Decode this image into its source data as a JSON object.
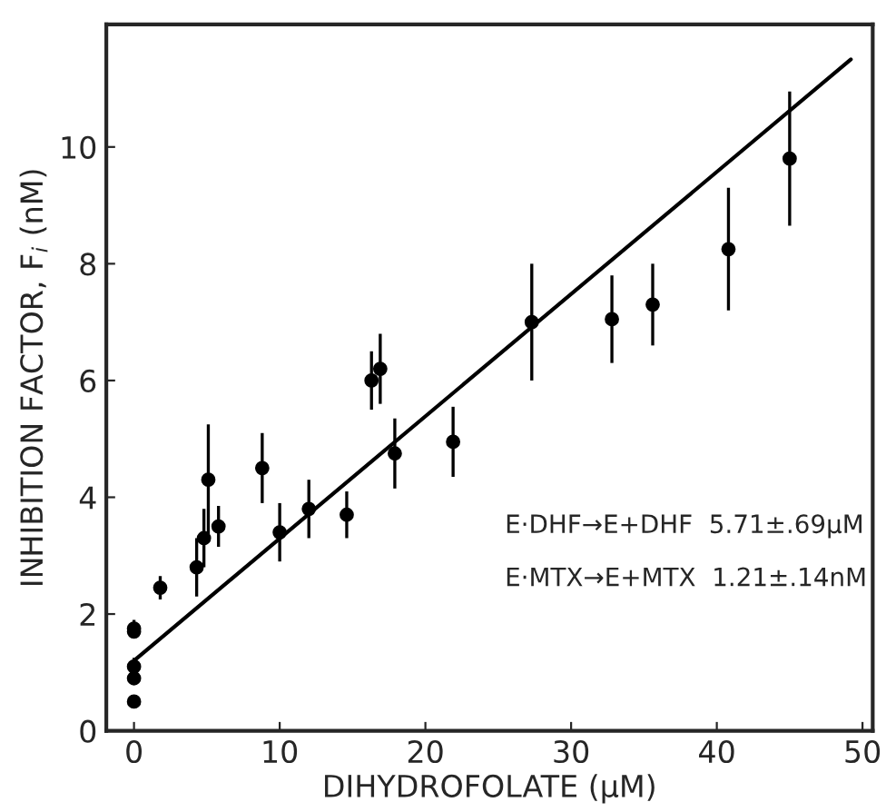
{
  "chart_data": {
    "type": "scatter",
    "xlabel": "DIHYDROFOLATE (μM)",
    "ylabel": "INHIBITION FACTOR, F$_{i}$ (nM)",
    "xlim": [
      -1.9,
      50.7
    ],
    "ylim": [
      0,
      12.1
    ],
    "xticks": [
      0,
      10,
      20,
      30,
      40,
      50
    ],
    "yticks": [
      0,
      2,
      4,
      6,
      8,
      10
    ],
    "grid": false,
    "legend": false,
    "series": [
      {
        "marker": "circle",
        "color": "#000000",
        "x": [
          0,
          0,
          0,
          0,
          0,
          1.8,
          4.3,
          4.8,
          5.1,
          5.8,
          8.8,
          10,
          12,
          14.6,
          16.3,
          16.9,
          17.9,
          21.9,
          27.3,
          32.8,
          35.6,
          40.8,
          45
        ],
        "values": [
          1.75,
          1.7,
          1.1,
          0.9,
          0.5,
          2.45,
          2.8,
          3.3,
          4.3,
          3.5,
          4.5,
          3.4,
          3.8,
          3.7,
          6.0,
          6.2,
          4.75,
          4.95,
          7.0,
          7.05,
          7.3,
          8.25,
          9.8
        ],
        "errors": [
          0.15,
          null,
          0.15,
          null,
          null,
          0.2,
          0.5,
          0.5,
          0.95,
          0.35,
          0.6,
          0.5,
          0.5,
          0.4,
          0.5,
          0.6,
          0.6,
          0.6,
          1.0,
          0.75,
          0.7,
          1.05,
          1.15
        ]
      },
      {
        "type": "line",
        "color": "#000000",
        "x": [
          0,
          49.2
        ],
        "values": [
          1.2,
          11.5
        ]
      }
    ],
    "annotations": [
      "E·DHF→E+DHF  5.71±.69μM",
      "E·MTX→E+MTX  1.21±.14nM"
    ]
  }
}
